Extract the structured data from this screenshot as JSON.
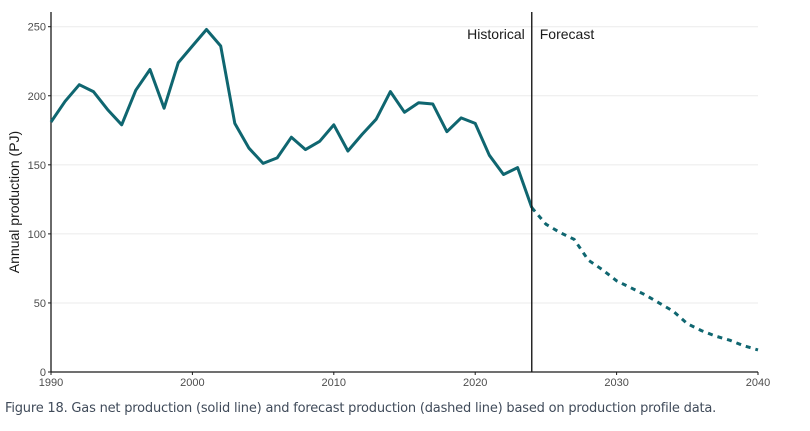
{
  "chart_data": {
    "type": "line",
    "title": "",
    "xlabel": "",
    "ylabel": "Annual production (PJ)",
    "xlim": [
      1990,
      2040
    ],
    "ylim": [
      0,
      260
    ],
    "x_ticks": [
      1990,
      2000,
      2010,
      2020,
      2030,
      2040
    ],
    "y_ticks": [
      0,
      50,
      100,
      150,
      200,
      250
    ],
    "grid": "horizontal",
    "divider": {
      "x": 2024,
      "left_label": "Historical",
      "right_label": "Forecast"
    },
    "series": [
      {
        "name": "Gas net production",
        "style": "solid",
        "color": "#0f6670",
        "x": [
          1990,
          1991,
          1992,
          1993,
          1994,
          1995,
          1996,
          1997,
          1998,
          1999,
          2000,
          2001,
          2002,
          2003,
          2004,
          2005,
          2006,
          2007,
          2008,
          2009,
          2010,
          2011,
          2012,
          2013,
          2014,
          2015,
          2016,
          2017,
          2018,
          2019,
          2020,
          2021,
          2022,
          2023,
          2024
        ],
        "values": [
          181,
          196,
          208,
          203,
          190,
          179,
          204,
          219,
          191,
          224,
          236,
          248,
          236,
          180,
          162,
          151,
          155,
          170,
          161,
          167,
          179,
          160,
          172,
          183,
          203,
          188,
          195,
          194,
          174,
          184,
          180,
          157,
          143,
          148,
          119
        ]
      },
      {
        "name": "Forecast production",
        "style": "dashed",
        "color": "#0f6670",
        "x": [
          2024,
          2025,
          2026,
          2027,
          2028,
          2029,
          2030,
          2031,
          2032,
          2033,
          2034,
          2035,
          2036,
          2037,
          2038,
          2039,
          2040
        ],
        "values": [
          119,
          107,
          101,
          96,
          81,
          74,
          66,
          61,
          56,
          50,
          44,
          35,
          30,
          26,
          23,
          19,
          16
        ]
      }
    ]
  },
  "caption": "Figure 18. Gas net production (solid line) and forecast production (dashed line) based on production profile data."
}
